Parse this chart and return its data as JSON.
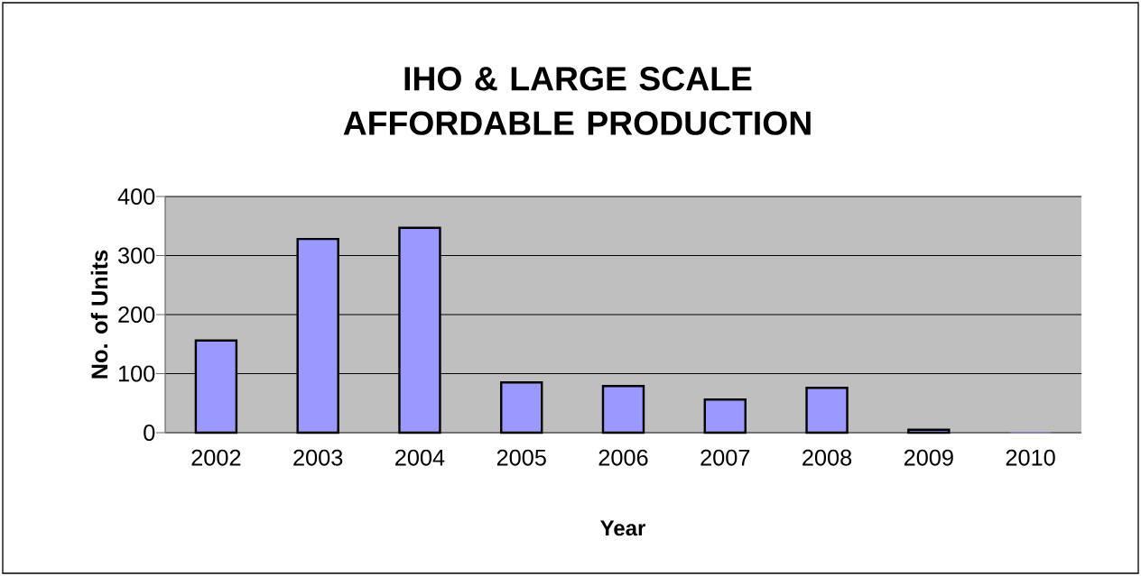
{
  "chart_data": {
    "type": "bar",
    "title": "IHO & LARGE SCALE AFFORDABLE PRODUCTION",
    "xlabel": "Year",
    "ylabel": "No. of Units",
    "categories": [
      "2002",
      "2003",
      "2004",
      "2005",
      "2006",
      "2007",
      "2008",
      "2009",
      "2010"
    ],
    "values": [
      156,
      328,
      347,
      85,
      79,
      56,
      76,
      5,
      0
    ],
    "color": "#9999ff",
    "ylim": [
      0,
      400
    ],
    "yticks": [
      0,
      100,
      200,
      300,
      400
    ],
    "grid": "y"
  }
}
